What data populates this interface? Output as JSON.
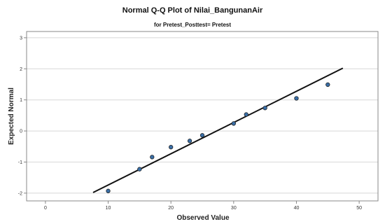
{
  "chart_data": {
    "type": "scatter",
    "title": "Normal Q-Q Plot of Nilai_BangunanAir",
    "subtitle": "for Pretest_Posttest= Pretest",
    "xlabel": "Observed Value",
    "ylabel": "Expected Normal",
    "xlim": [
      -3,
      53
    ],
    "ylim": [
      -2.25,
      3.2
    ],
    "x_ticks": [
      0,
      10,
      20,
      30,
      40,
      50
    ],
    "y_ticks": [
      -2,
      -1,
      0,
      1,
      2,
      3
    ],
    "grid": "horizontal",
    "colors": {
      "point_fill": "#3a6ea5",
      "point_stroke": "#1a1a1a",
      "line": "#111111",
      "grid": "#d8d8d8",
      "frame": "#888888"
    },
    "points": [
      {
        "x": 10,
        "y": -1.93
      },
      {
        "x": 15,
        "y": -1.23
      },
      {
        "x": 17,
        "y": -0.84
      },
      {
        "x": 20,
        "y": -0.52
      },
      {
        "x": 23,
        "y": -0.32
      },
      {
        "x": 25,
        "y": -0.14
      },
      {
        "x": 30,
        "y": 0.24
      },
      {
        "x": 32,
        "y": 0.53
      },
      {
        "x": 35,
        "y": 0.74
      },
      {
        "x": 40,
        "y": 1.05
      },
      {
        "x": 45,
        "y": 1.49
      }
    ],
    "reference_line": {
      "x1": 7.6,
      "y1": -1.98,
      "x2": 47.4,
      "y2": 2.02
    }
  }
}
